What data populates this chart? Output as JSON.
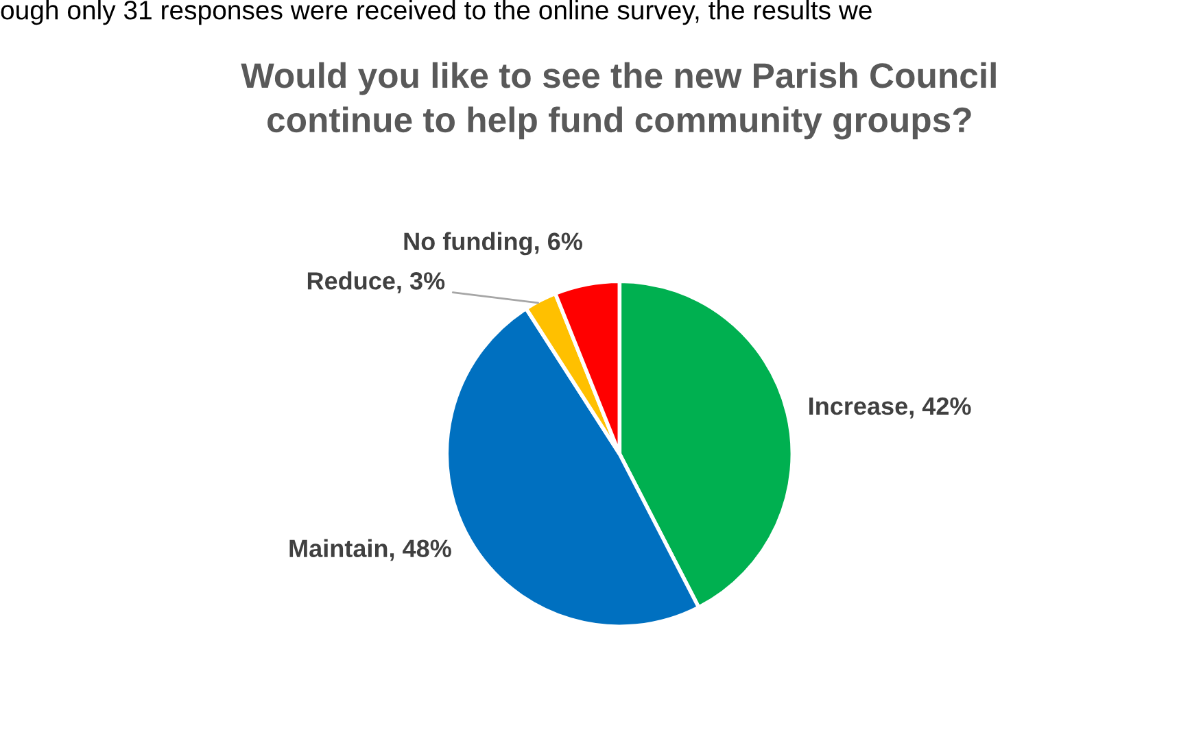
{
  "chart_data": {
    "type": "pie",
    "title": "Would you like to see the new Parish Council\ncontinue to help fund community groups?",
    "annotations": [
      "ough only 31 responses were received to the online survey, the results we"
    ],
    "categories": [
      "Increase",
      "Maintain",
      "Reduce",
      "No funding"
    ],
    "values": [
      42,
      48,
      3,
      6
    ],
    "value_labels": [
      "42%",
      "48%",
      "3%",
      "6%"
    ],
    "colors": [
      "#00b050",
      "#0070c0",
      "#ffc000",
      "#ff0000"
    ],
    "legend": false
  }
}
